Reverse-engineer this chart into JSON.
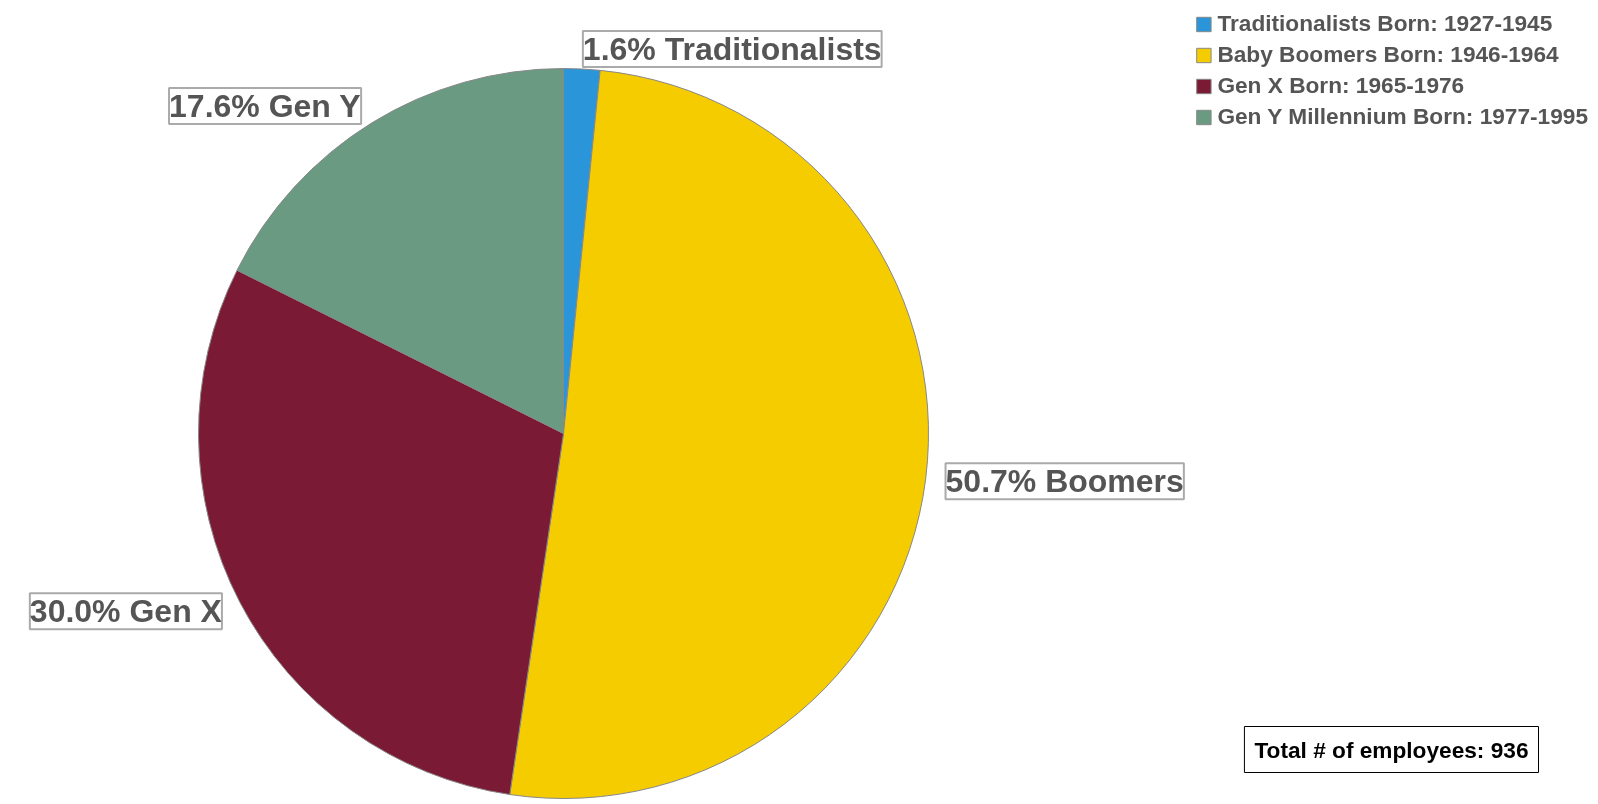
{
  "chart_data": {
    "type": "pie",
    "categories": [
      "Traditionalists Born: 1927-1945",
      "Baby Boomers Born: 1946-1964",
      "Gen X Born: 1965-1976",
      "Gen Y Millennium Born: 1977-1995"
    ],
    "values": [
      1.6,
      50.7,
      30.0,
      17.6
    ],
    "colors": [
      "#2b95d9",
      "#f5cc00",
      "#7a1a35",
      "#6a9a82"
    ],
    "value_labels": [
      "1.6% Traditionalists",
      "50.7% Boomers",
      "30.0% Gen X",
      "17.6% Gen Y"
    ],
    "legend": "top right",
    "annotations": [
      "Total # of employees: 936"
    ]
  }
}
